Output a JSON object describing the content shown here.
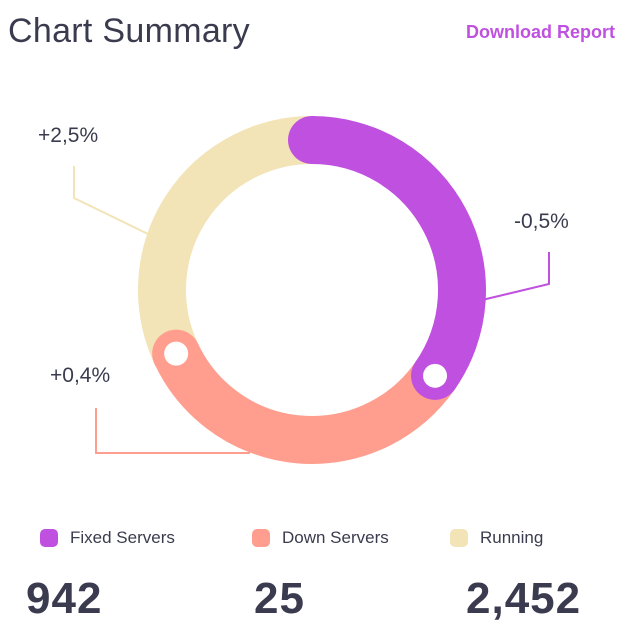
{
  "header": {
    "title": "Chart Summary",
    "download_label": "Download Report"
  },
  "chart_data": {
    "type": "pie",
    "variant": "donut",
    "title": "",
    "series": [
      {
        "name": "Fixed Servers",
        "value": 942,
        "display": "942",
        "change": "-0,5%",
        "color": "#c050e0"
      },
      {
        "name": "Down Servers",
        "value": 25,
        "display": "25",
        "change": "+0,4%",
        "color": "#ff9e8e"
      },
      {
        "name": "Running",
        "value": 2452,
        "display": "2,452",
        "change": "+2,5%",
        "color": "#f3e4b8"
      }
    ],
    "legend_position": "bottom"
  }
}
